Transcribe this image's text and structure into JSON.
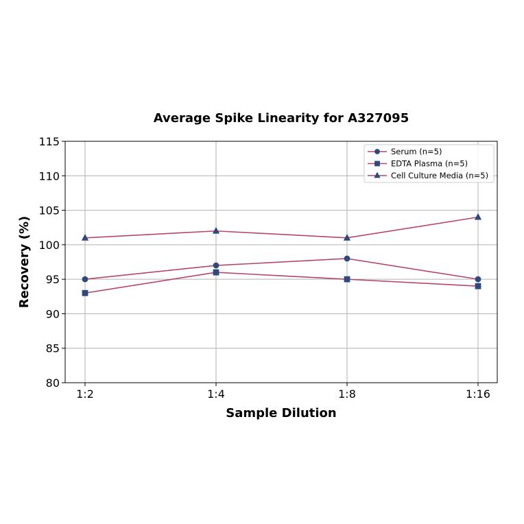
{
  "chart_data": {
    "type": "line",
    "title": "Average Spike Linearity for A327095",
    "xlabel": "Sample Dilution",
    "ylabel": "Recovery (%)",
    "categories": [
      "1:2",
      "1:4",
      "1:8",
      "1:16"
    ],
    "ylim": [
      80,
      115
    ],
    "yticks": [
      80,
      85,
      90,
      95,
      100,
      105,
      110,
      115
    ],
    "grid": true,
    "legend_position": "upper right",
    "series": [
      {
        "name": "Serum (n=5)",
        "marker": "circle",
        "values": [
          95,
          97,
          98,
          95
        ]
      },
      {
        "name": "EDTA Plasma (n=5)",
        "marker": "square",
        "values": [
          93,
          96,
          95,
          94
        ]
      },
      {
        "name": "Cell Culture Media (n=5)",
        "marker": "triangle",
        "values": [
          101,
          102,
          101,
          104
        ]
      }
    ],
    "colors": {
      "line": "#b5456b",
      "marker": "#2e4a7a",
      "grid": "#b0b0b0",
      "axis": "#000000"
    }
  }
}
